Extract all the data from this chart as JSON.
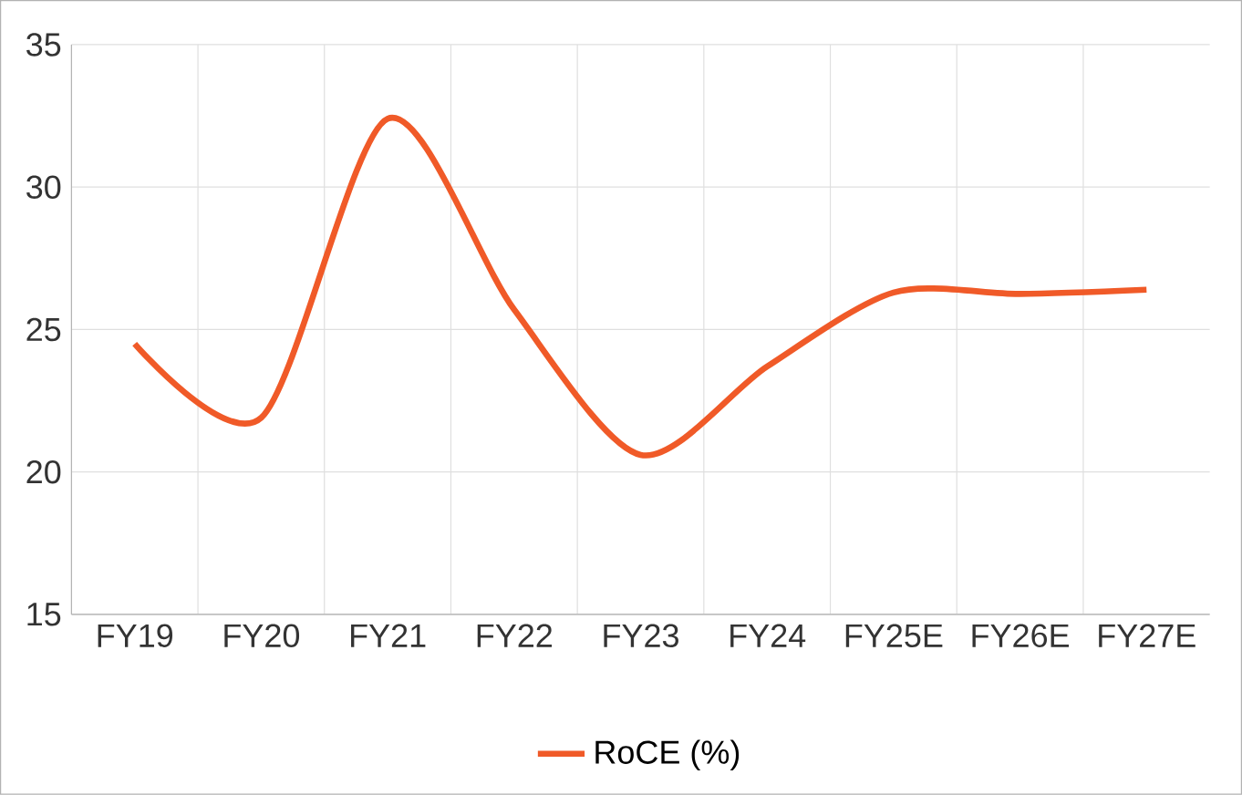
{
  "chart_data": {
    "type": "line",
    "categories": [
      "FY19",
      "FY20",
      "FY21",
      "FY22",
      "FY23",
      "FY24",
      "FY25E",
      "FY26E",
      "FY27E"
    ],
    "series": [
      {
        "name": "RoCE (%)",
        "color": "#f05a28",
        "values": [
          24.5,
          21.9,
          32.4,
          25.7,
          20.6,
          23.7,
          26.3,
          26.25,
          26.4
        ]
      }
    ],
    "ylim": [
      15,
      35
    ],
    "yticks": [
      15,
      20,
      25,
      30,
      35
    ],
    "grid": true,
    "legend": "bottom",
    "marker": "none",
    "line_style": "solid"
  }
}
